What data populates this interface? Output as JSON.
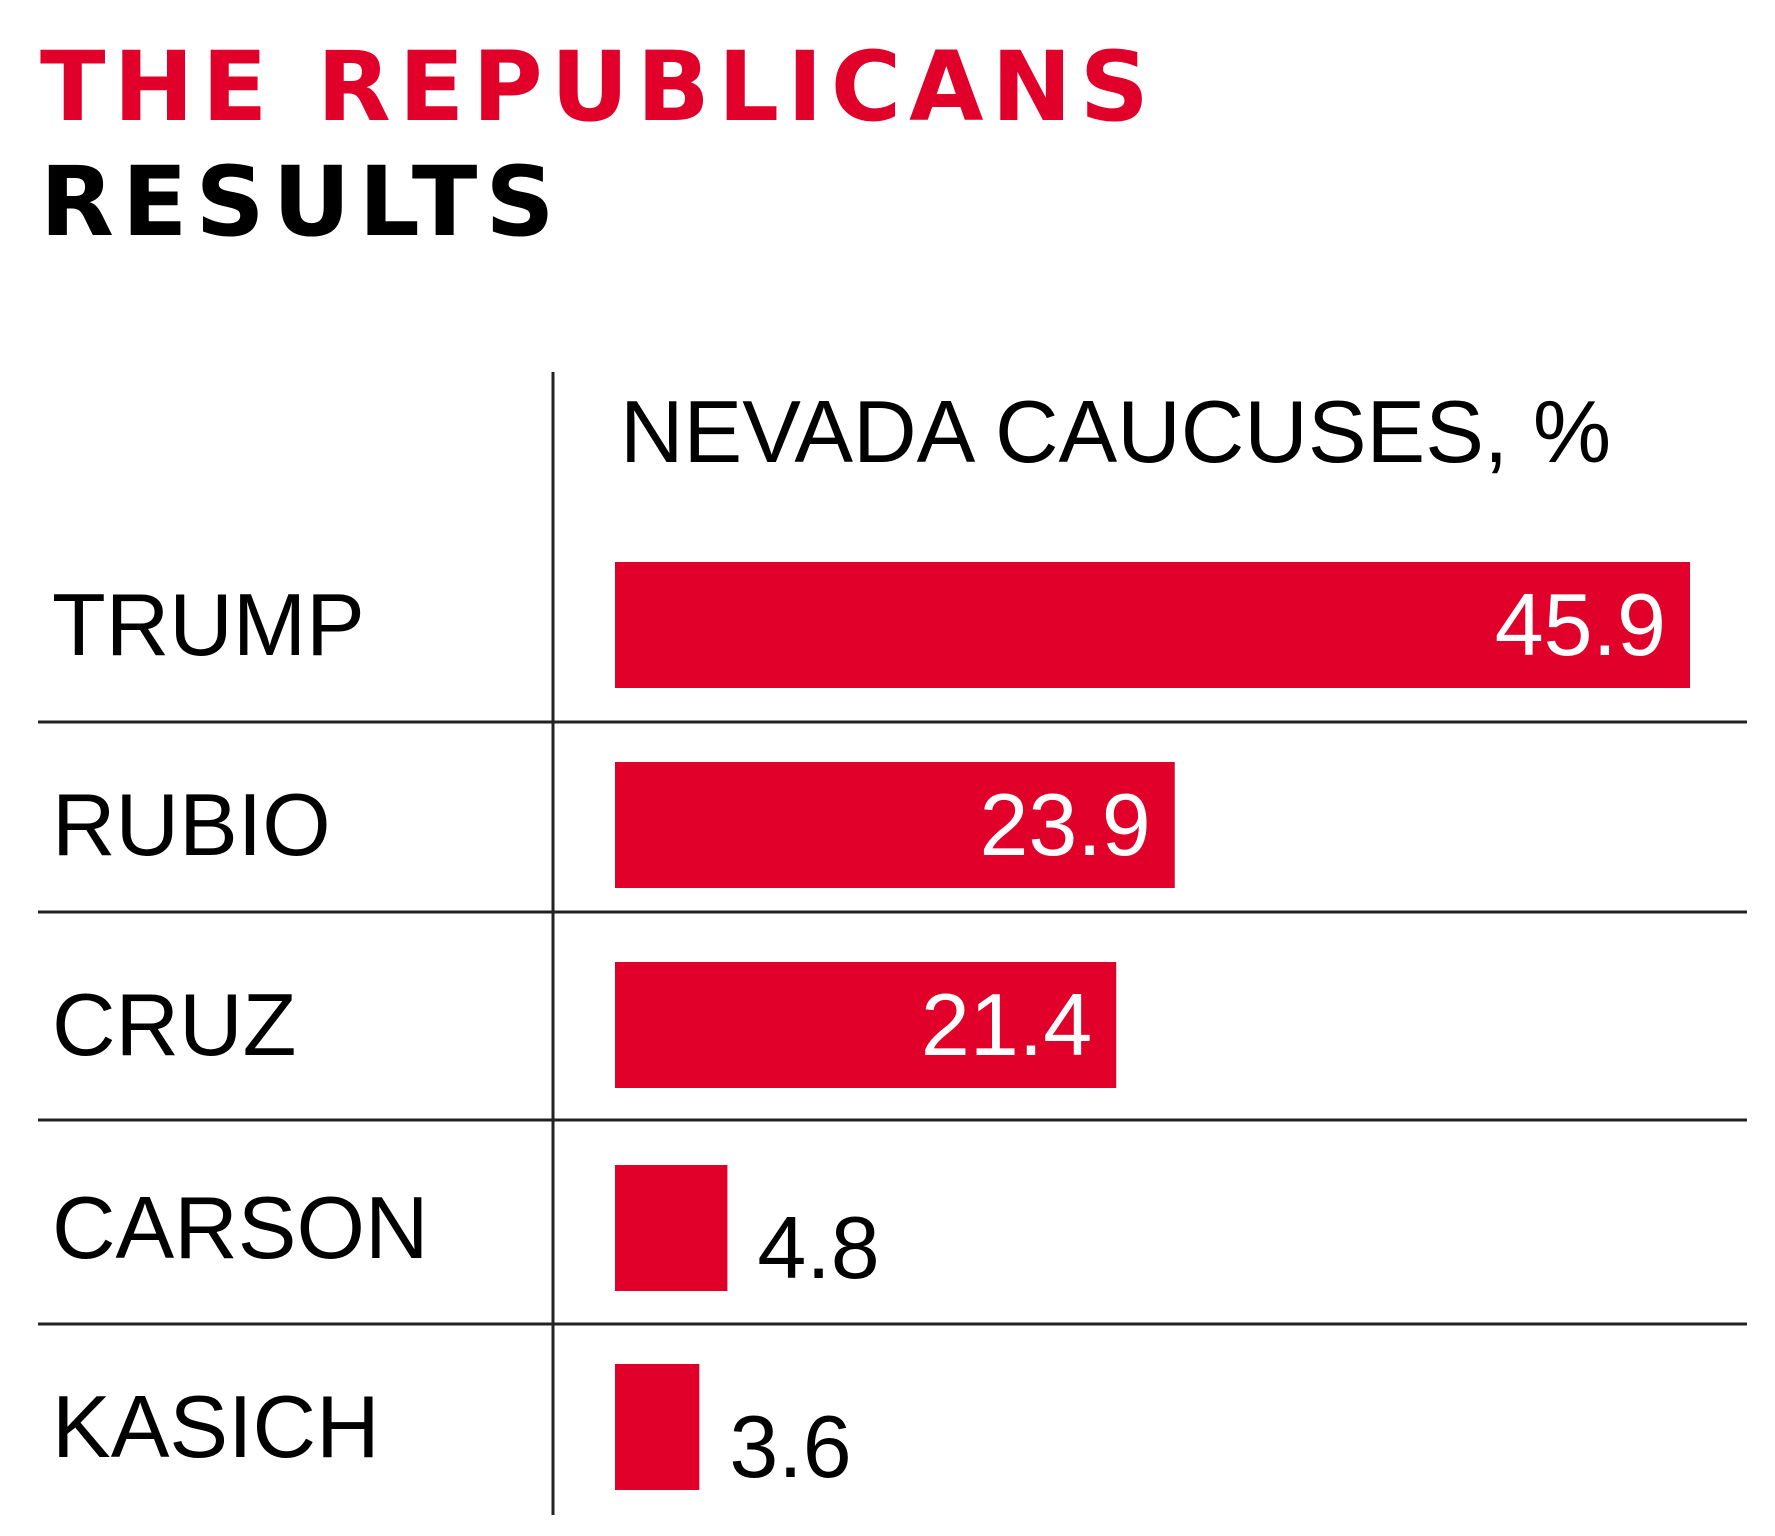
{
  "header": {
    "title": "THE REPUBLICANS",
    "subtitle": "RESULTS"
  },
  "colors": {
    "accent": "#e0002a",
    "text": "#000000",
    "bar_label_inside": "#ffffff",
    "divider": "#222222"
  },
  "chart_data": {
    "type": "bar",
    "orientation": "horizontal",
    "title": "NEVADA CAUCUSES, %",
    "categories": [
      "TRUMP",
      "RUBIO",
      "CRUZ",
      "CARSON",
      "KASICH"
    ],
    "values": [
      45.9,
      23.9,
      21.4,
      4.8,
      3.6
    ],
    "value_labels": [
      "45.9",
      "23.9",
      "21.4",
      "4.8",
      "3.6"
    ],
    "xlim": [
      0,
      45.9
    ],
    "grid": false,
    "legend": "none"
  }
}
